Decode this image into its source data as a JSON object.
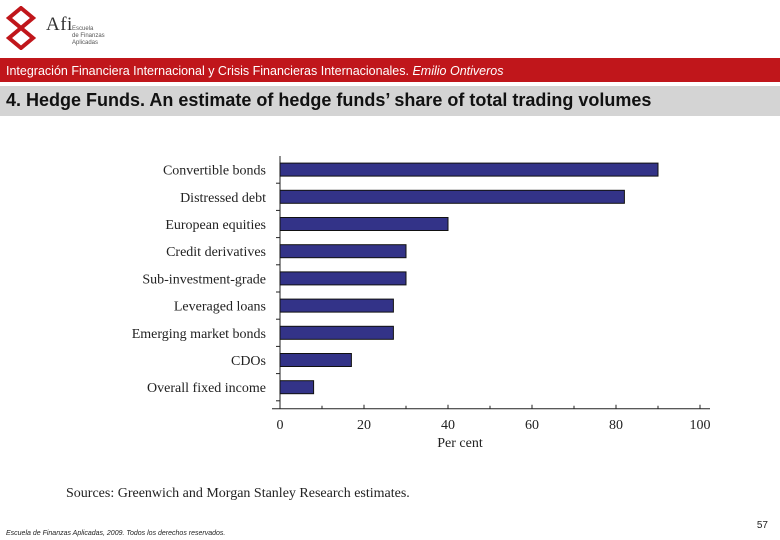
{
  "logo": {
    "text": "Afi",
    "lines": [
      "Escuela",
      "de Finanzas",
      "Aplicadas"
    ]
  },
  "header": {
    "subtitle": "Integración Financiera Internacional y Crisis Financieras Internacionales.",
    "author": "Emilio Ontiveros"
  },
  "slide": {
    "title": "4. Hedge Funds. An estimate of hedge funds’ share of total trading volumes",
    "source": "Sources: Greenwich and Morgan Stanley Research estimates.",
    "footer": "Escuela de Finanzas Aplicadas, 2009. Todos los derechos reservados.",
    "page": "57"
  },
  "colors": {
    "bar": "#333388",
    "brand_red": "#c0161b",
    "title_bg": "#d4d4d4"
  },
  "chart_data": {
    "type": "bar",
    "orientation": "horizontal",
    "categories": [
      "Convertible bonds",
      "Distressed debt",
      "European equities",
      "Credit derivatives",
      "Sub-investment-grade",
      "Leveraged loans",
      "Emerging market bonds",
      "CDOs",
      "Overall fixed income"
    ],
    "values": [
      90,
      82,
      40,
      30,
      30,
      27,
      27,
      17,
      8
    ],
    "xlabel": "Per cent",
    "xlim": [
      0,
      100
    ],
    "xticks": [
      0,
      20,
      40,
      60,
      80,
      100
    ],
    "grid": false
  }
}
